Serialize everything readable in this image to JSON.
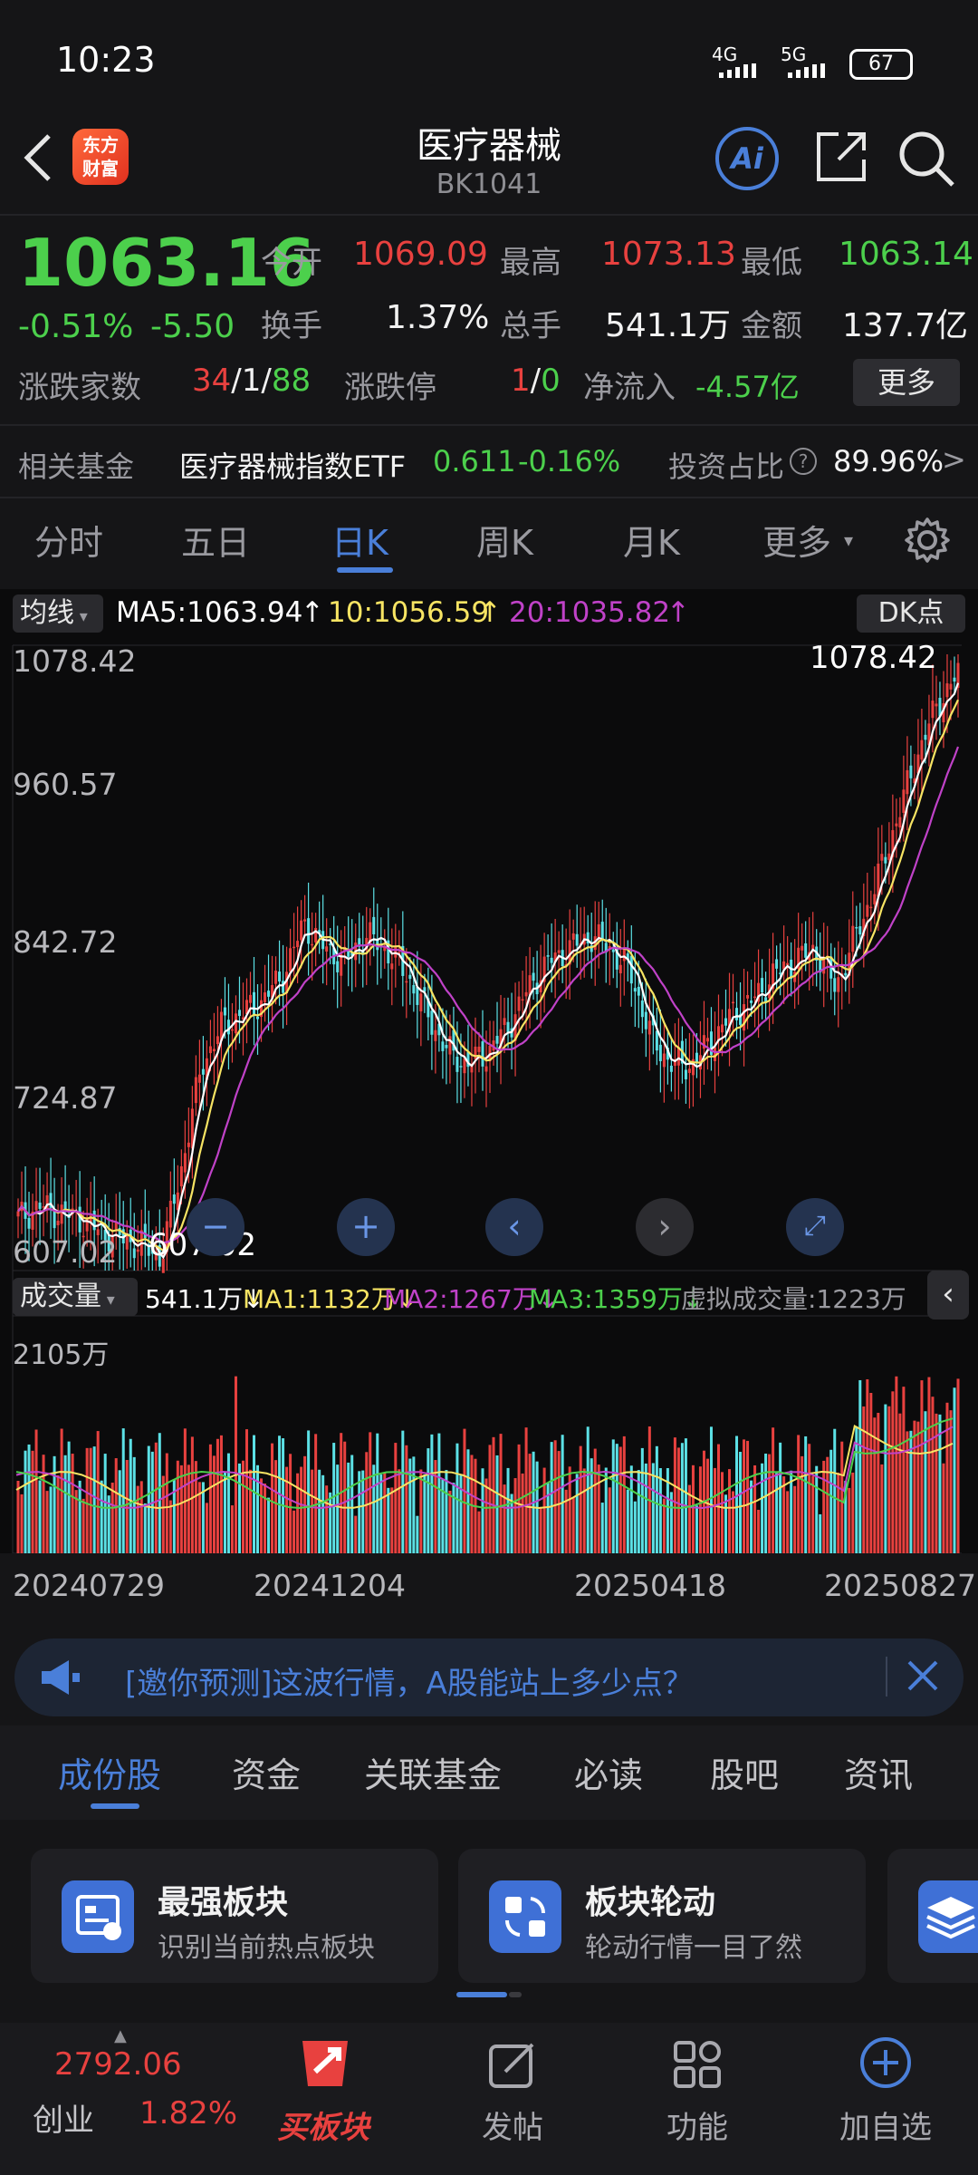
{
  "status": {
    "time": "10:23",
    "net1": "4G",
    "net2": "5G",
    "battery": "67"
  },
  "header": {
    "title": "医疗器械",
    "code": "BK1041",
    "logo_text": "东方财富",
    "ai_label": "Ai"
  },
  "quote": {
    "price": "1063.16",
    "change_pct": "-0.51%",
    "change": "-5.50",
    "open_label": "今开",
    "open": "1069.09",
    "high_label": "最高",
    "high": "1073.13",
    "low_label": "最低",
    "low": "1063.14",
    "turnover_label": "换手",
    "turnover": "1.37%",
    "volume_label": "总手",
    "volume": "541.1万",
    "amount_label": "金额",
    "amount": "137.7亿",
    "breadth_label": "涨跌家数",
    "up": "34",
    "flat": "1",
    "down": "88",
    "limit_label": "涨跌停",
    "limit_up": "1",
    "limit_down": "0",
    "netflow_label": "净流入",
    "netflow": "-4.57亿",
    "more_label": "更多"
  },
  "fund": {
    "label": "相关基金",
    "name": "医疗器械指数ETF",
    "price": "0.611",
    "change": "-0.16%",
    "ratio_label": "投资占比",
    "ratio": "89.96%"
  },
  "ktabs": [
    "分时",
    "五日",
    "日K",
    "周K",
    "月K",
    "更多"
  ],
  "ma": {
    "type": "均线",
    "ma5": "MA5:1063.94",
    "ma10": "10:1056.59",
    "ma20": "20:1035.82",
    "dk": "DK点"
  },
  "price_axis": [
    "1078.42",
    "960.57",
    "842.72",
    "724.87",
    "607.02"
  ],
  "high_mark": "1078.42",
  "low_mark": "607.02",
  "vol": {
    "type": "成交量",
    "v": "541.1万",
    "ma1": "MA1:1132万",
    "ma2": "MA2:1267万",
    "ma3": "MA3:1359万",
    "virtual": "虚拟成交量:1223万",
    "axis_max": "2105万"
  },
  "dates": [
    "20240729",
    "20241204",
    "20250418",
    "20250827"
  ],
  "banner": {
    "text": "[邀你预测]这波行情，A股能站上多少点？"
  },
  "sections": [
    "成份股",
    "资金",
    "关联基金",
    "必读",
    "股吧",
    "资讯"
  ],
  "cards": [
    {
      "title": "最强板块",
      "sub": "识别当前热点板块"
    },
    {
      "title": "板块轮动",
      "sub": "轮动行情一目了然"
    }
  ],
  "nav": {
    "index_value": "2792.06",
    "index_name": "创业",
    "index_change": "1.82%",
    "buy": "买板块",
    "post": "发帖",
    "func": "功能",
    "add": "加自选"
  },
  "colors": {
    "up": "#e8413f",
    "down": "#4cd04c",
    "accent": "#4a7fd9",
    "ma5": "#ffffff",
    "ma10": "#f7e463",
    "ma20": "#c042c8"
  },
  "chart_data": {
    "type": "candlestick",
    "x_range": [
      "20240729",
      "20250827"
    ],
    "ylim": [
      607.02,
      1078.42
    ],
    "close_trend": [
      640,
      650,
      645,
      640,
      630,
      625,
      620,
      610,
      680,
      760,
      790,
      800,
      810,
      830,
      870,
      850,
      840,
      860,
      850,
      830,
      800,
      770,
      760,
      770,
      790,
      820,
      840,
      850,
      860,
      850,
      830,
      780,
      760,
      760,
      780,
      800,
      810,
      830,
      840,
      850,
      820,
      860,
      900,
      950,
      1000,
      1040,
      1063.16
    ],
    "series": [
      {
        "name": "MA5",
        "last": 1063.94
      },
      {
        "name": "10",
        "last": 1056.59
      },
      {
        "name": "20",
        "last": 1035.82
      }
    ],
    "volume_max": "2105万"
  }
}
